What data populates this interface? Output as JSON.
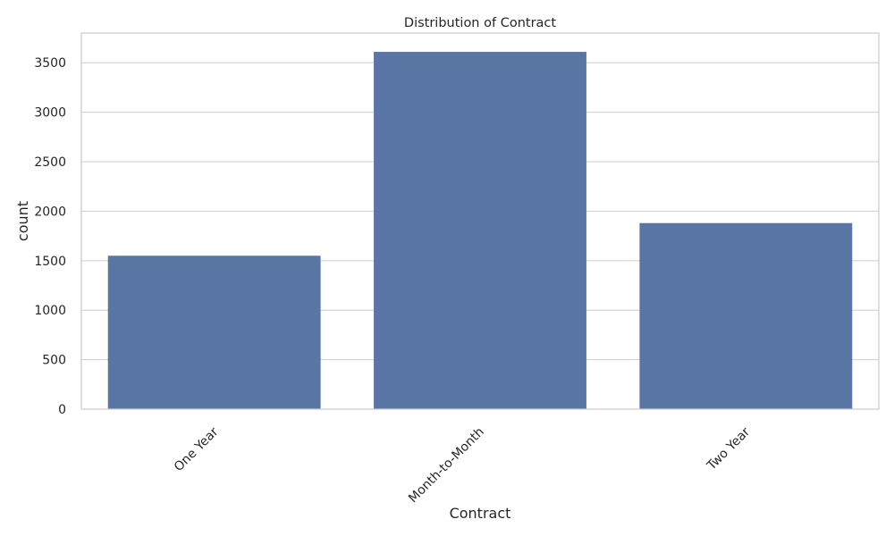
{
  "chart_data": {
    "type": "bar",
    "title": "Distribution of Contract",
    "xlabel": "Contract",
    "ylabel": "count",
    "categories": [
      "One Year",
      "Month-to-Month",
      "Two Year"
    ],
    "values": [
      1550,
      3610,
      1880
    ],
    "ylim": [
      0,
      3800
    ],
    "yticks": [
      0,
      500,
      1000,
      1500,
      2000,
      2500,
      3000,
      3500
    ],
    "bar_color": "#5975a4",
    "grid": "horizontal",
    "frame_color": "#cccccc",
    "xtick_rotation": 45
  }
}
